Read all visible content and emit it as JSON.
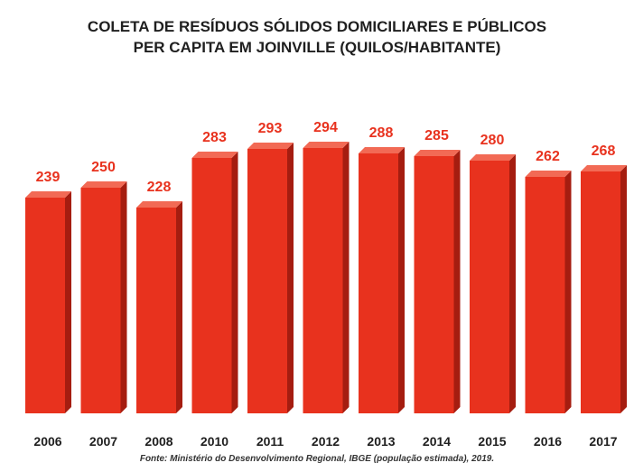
{
  "chart_data": {
    "type": "bar",
    "title": "COLETA DE RESÍDUOS SÓLIDOS DOMICILIARES E PÚBLICOS",
    "subtitle": "PER CAPITA EM JOINVILLE (QUILOS/HABITANTE)",
    "categories": [
      "2006",
      "2007",
      "2008",
      "2010",
      "2011",
      "2012",
      "2013",
      "2014",
      "2015",
      "2016",
      "2017"
    ],
    "values": [
      239,
      250,
      228,
      283,
      293,
      294,
      288,
      285,
      280,
      262,
      268
    ],
    "xlabel": "",
    "ylabel": "",
    "ylim": [
      0,
      300
    ],
    "grid": false,
    "source": "Fonte: Ministério do Desenvolvimento Regional, IBGE (população estimada), 2019.",
    "colors": {
      "bar_front": "#e8321e",
      "bar_side": "#a51d10",
      "bar_top": "#f26a55",
      "value_label": "#e8321e",
      "category_label": "#1f1f1f"
    }
  }
}
